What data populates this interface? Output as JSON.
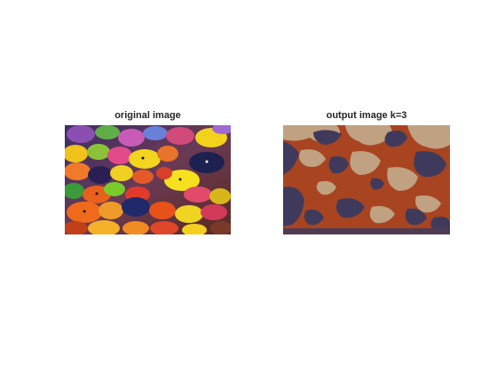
{
  "figure": {
    "left_panel": {
      "title": "original image"
    },
    "right_panel": {
      "title": "output image k=3"
    }
  },
  "colors": {
    "background": "#ffffff",
    "cluster_dark": "#3f3a5c",
    "cluster_orange": "#a84420",
    "cluster_tan": "#c0a181"
  }
}
